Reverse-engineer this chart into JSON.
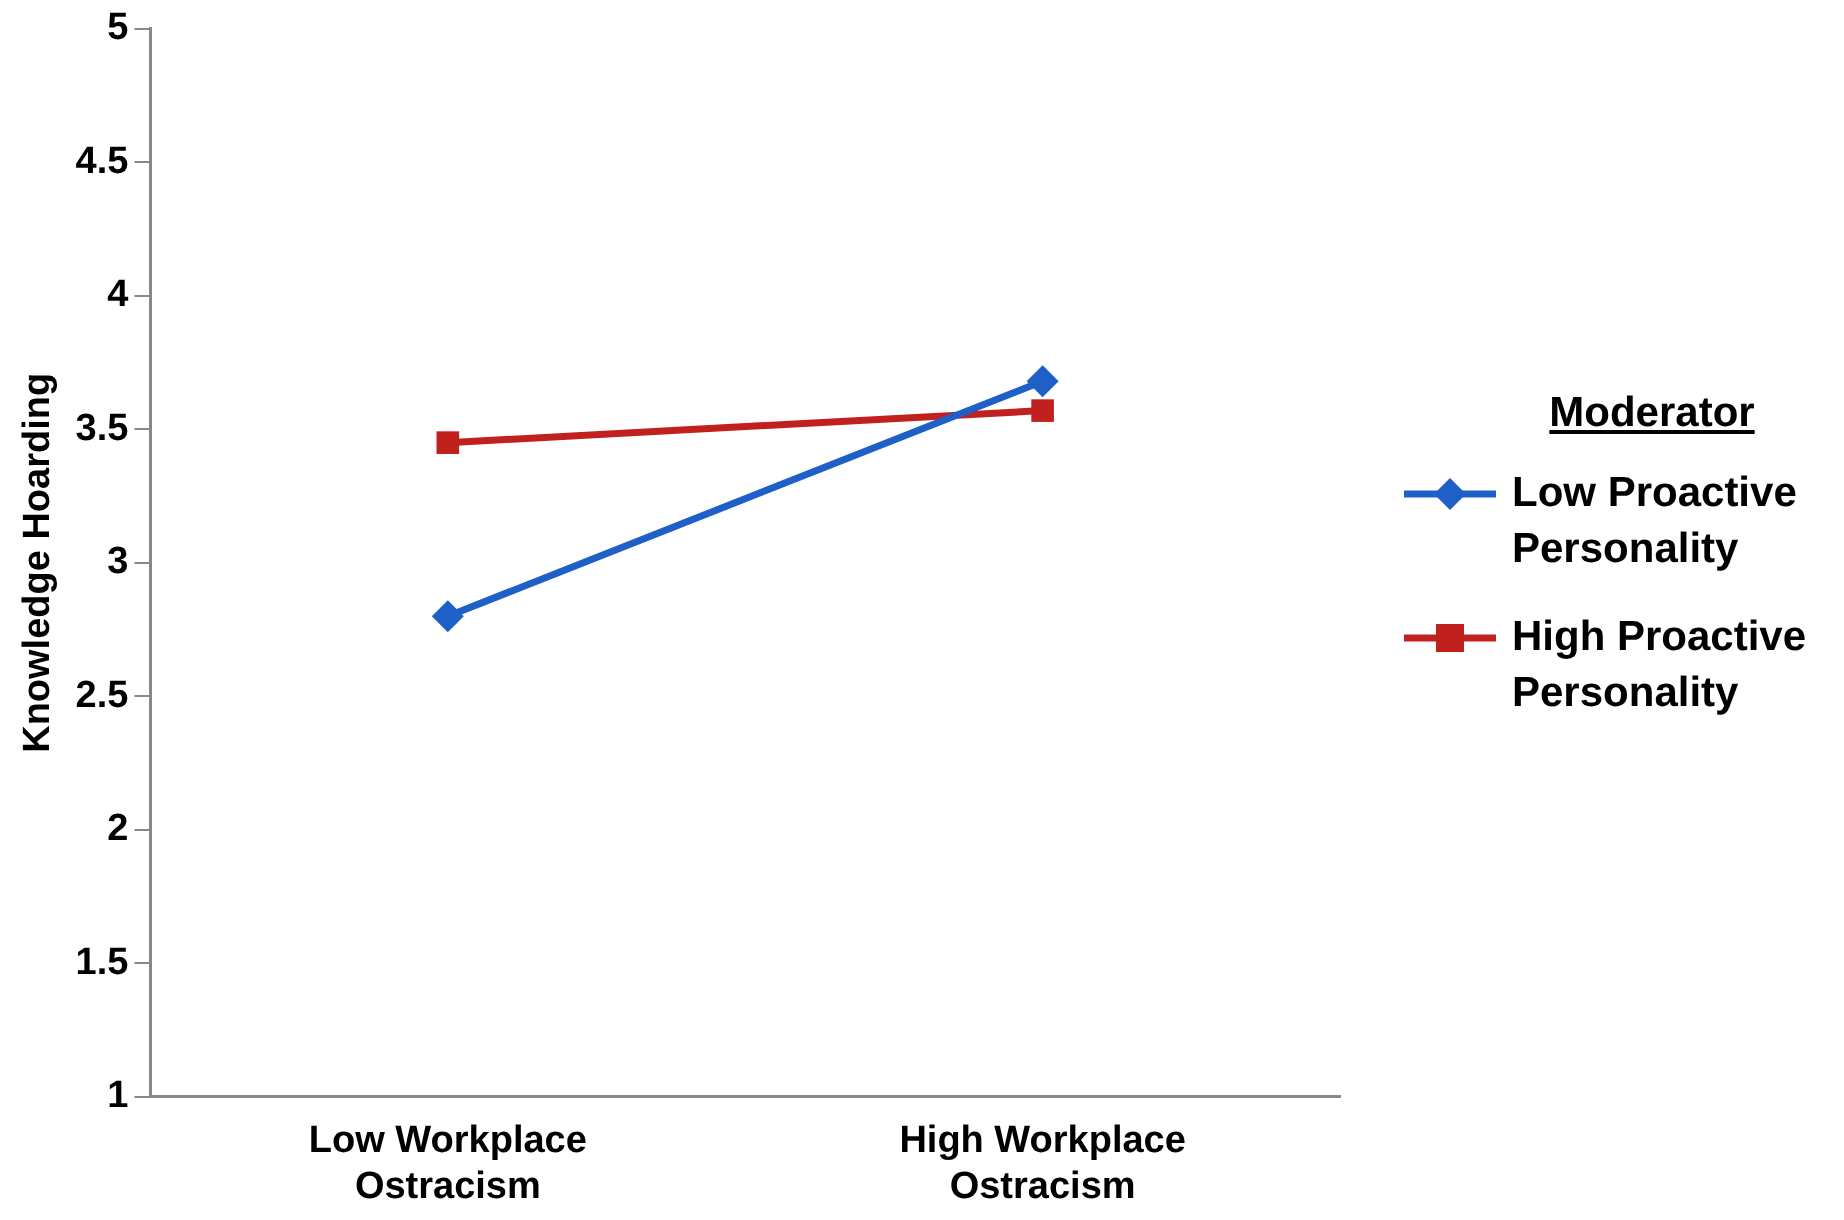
{
  "chart_data": {
    "type": "line",
    "ylabel": "Knowledge Hoarding",
    "legend_title": "Moderator",
    "categories": [
      "Low Workplace Ostracism",
      "High Workplace Ostracism"
    ],
    "series": [
      {
        "name": "Low Proactive Personality",
        "color": "#1f5fc8",
        "marker": "diamond",
        "values": [
          2.8,
          3.68
        ]
      },
      {
        "name": "High Proactive Personality",
        "color": "#c0201e",
        "marker": "square",
        "values": [
          3.45,
          3.57
        ]
      }
    ],
    "ylim": [
      1,
      5
    ],
    "yticks": [
      1,
      1.5,
      2,
      2.5,
      3,
      3.5,
      4,
      4.5,
      5
    ],
    "grid": false,
    "legend": "right",
    "line_style": "solid"
  }
}
